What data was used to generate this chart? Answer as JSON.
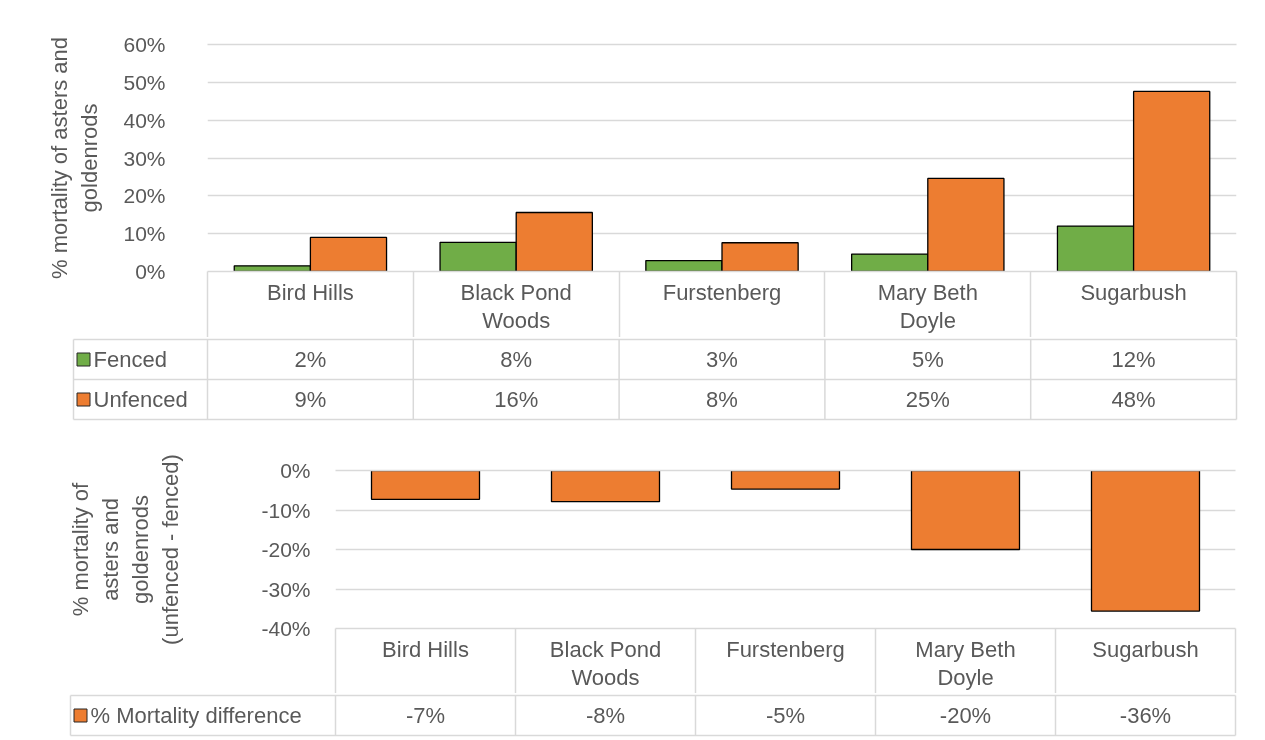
{
  "chart_data": [
    {
      "type": "bar",
      "categories": [
        "Bird Hills",
        "Black Pond Woods",
        "Furstenberg",
        "Mary Beth Doyle",
        "Sugarbush"
      ],
      "ylabel": "% mortality of asters and goldenrods",
      "series": [
        {
          "name": "Fenced",
          "color": "#70ad47",
          "values": [
            1.5,
            7.7,
            2.9,
            4.6,
            12.0
          ],
          "value_labels": [
            "2%",
            "8%",
            "3%",
            "5%",
            "12%"
          ]
        },
        {
          "name": "Unfenced",
          "color": "#ed7d31",
          "values": [
            9.0,
            15.6,
            7.6,
            24.6,
            47.6
          ],
          "value_labels": [
            "9%",
            "16%",
            "8%",
            "25%",
            "48%"
          ]
        }
      ],
      "ylim": [
        0,
        60
      ],
      "yticks": [
        {
          "value": 0,
          "label": "0%"
        },
        {
          "value": 10,
          "label": "10%"
        },
        {
          "value": 20,
          "label": "20%"
        },
        {
          "value": 30,
          "label": "30%"
        },
        {
          "value": 40,
          "label": "40%"
        },
        {
          "value": 50,
          "label": "50%"
        },
        {
          "value": 60,
          "label": "60%"
        }
      ],
      "grid": "y",
      "legend": "bottom"
    },
    {
      "type": "bar",
      "categories": [
        "Bird Hills",
        "Black Pond Woods",
        "Furstenberg",
        "Mary Beth Doyle",
        "Sugarbush"
      ],
      "ylabel": "% mortality of asters and goldenrods (unfenced - fenced)",
      "series": [
        {
          "name": "% Mortality difference",
          "color": "#ed7d31",
          "values": [
            -7.3,
            -7.9,
            -4.7,
            -20.0,
            -35.6
          ],
          "value_labels": [
            "-7%",
            "-8%",
            "-5%",
            "-20%",
            "-36%"
          ]
        }
      ],
      "ylim": [
        -40,
        0
      ],
      "yticks": [
        {
          "value": -40,
          "label": "-40%"
        },
        {
          "value": -30,
          "label": "-30%"
        },
        {
          "value": -20,
          "label": "-20%"
        },
        {
          "value": -10,
          "label": "-10%"
        },
        {
          "value": 0,
          "label": "0%"
        }
      ],
      "grid": "y",
      "legend": "bottom"
    }
  ]
}
